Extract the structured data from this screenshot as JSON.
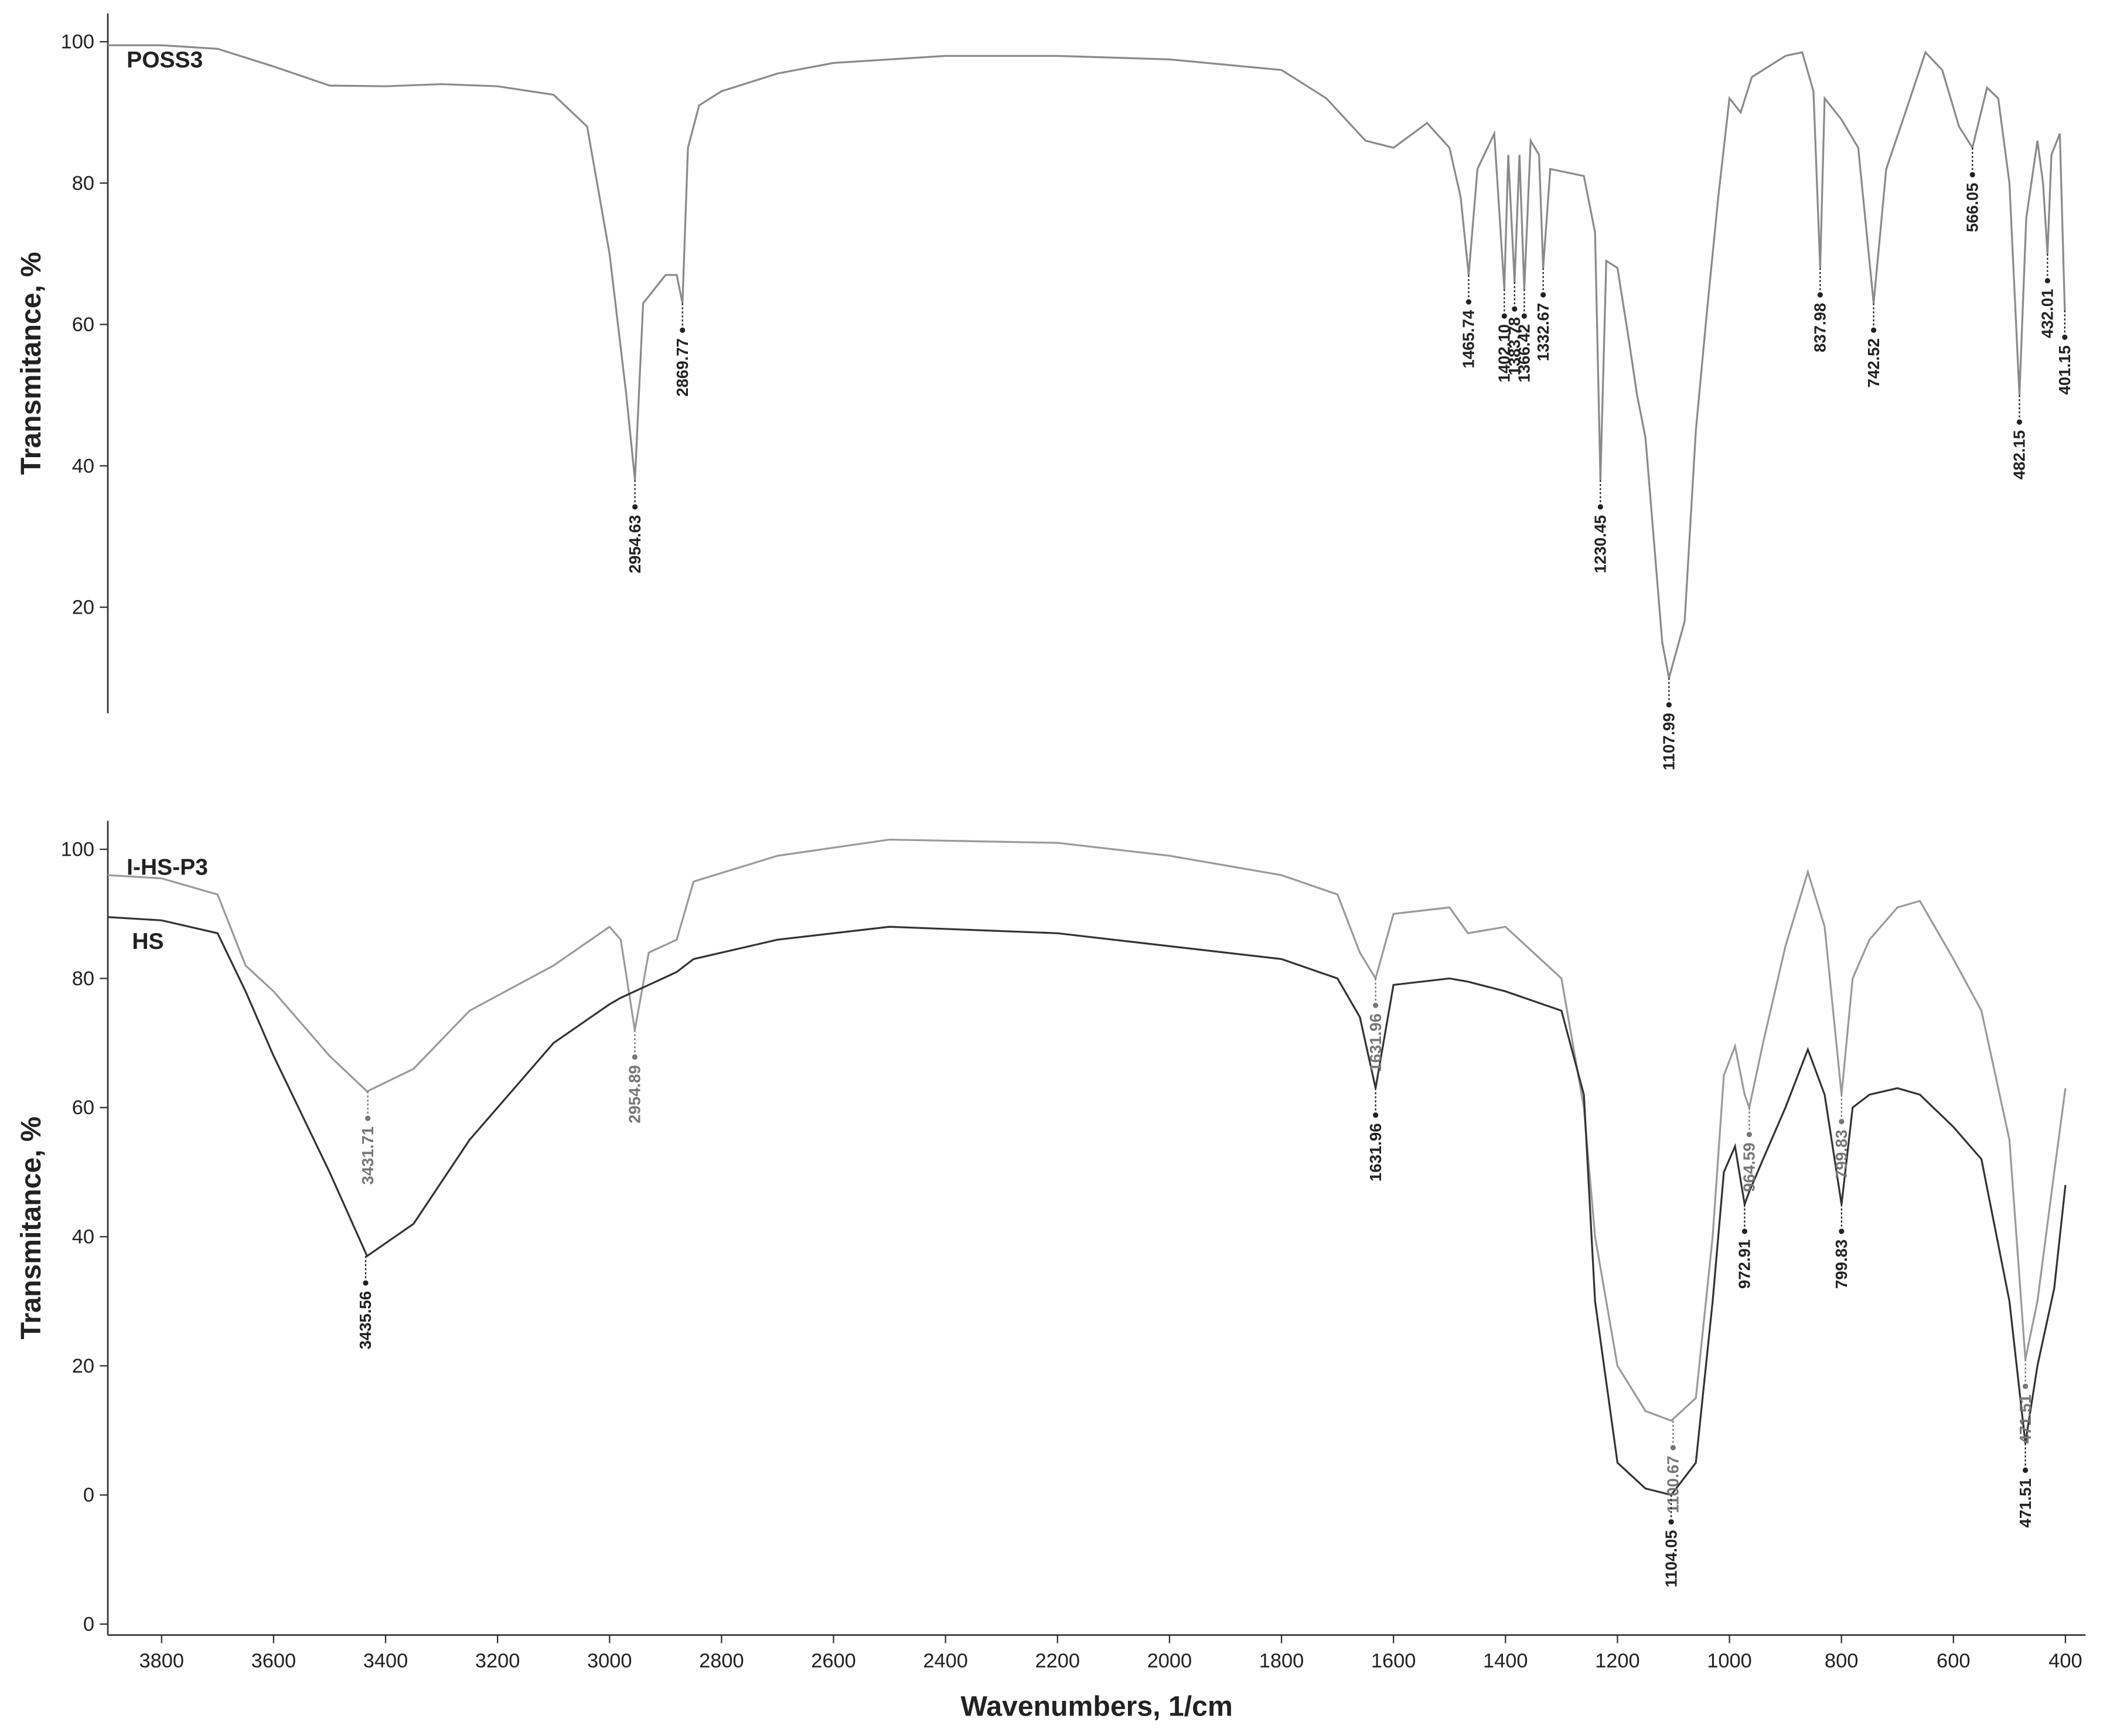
{
  "chart_data": [
    {
      "type": "line",
      "ylabel": "Transmitance, %",
      "xlim": [
        3896,
        364
      ],
      "ylim": [
        5,
        104
      ],
      "yticks": [
        20,
        40,
        60,
        80,
        100
      ],
      "x": [
        3896,
        3800,
        3700,
        3600,
        3500,
        3400,
        3300,
        3200,
        3100,
        3040,
        3000,
        2970,
        2954.63,
        2940,
        2920,
        2900,
        2880,
        2869.77,
        2860,
        2840,
        2800,
        2700,
        2600,
        2400,
        2200,
        2000,
        1800,
        1720,
        1650,
        1600,
        1540,
        1500,
        1480,
        1465.74,
        1450,
        1420,
        1402.1,
        1395,
        1383.78,
        1375,
        1366.42,
        1355,
        1340,
        1332.67,
        1320,
        1260,
        1240,
        1230.45,
        1220,
        1200,
        1180,
        1165,
        1150,
        1120,
        1107.99,
        1080,
        1060,
        1040,
        1020,
        1000,
        980,
        960,
        900,
        870,
        850,
        837.98,
        830,
        800,
        770,
        742.52,
        720,
        690,
        650,
        620,
        590,
        566.05,
        540,
        520,
        500,
        482.15,
        470,
        450,
        440,
        432.01,
        425,
        410,
        401.15
      ],
      "series": [
        {
          "name": "POSS3",
          "color": "#8a8a8a",
          "values": [
            99.5,
            99.5,
            99,
            96.5,
            93.8,
            93.7,
            94,
            93.7,
            92.5,
            88,
            70,
            50,
            38,
            63,
            65,
            67,
            67,
            63,
            85,
            91,
            93,
            95.5,
            97,
            98,
            98,
            97.5,
            96,
            92,
            86,
            85,
            88.5,
            85,
            78,
            67,
            82,
            87,
            65,
            84,
            66,
            84,
            65,
            86,
            84,
            68,
            82,
            81,
            73,
            38,
            69,
            68,
            58,
            50,
            44,
            15,
            10,
            18,
            45,
            62,
            78,
            92,
            90,
            95,
            98,
            98.5,
            93,
            68,
            92,
            89,
            85,
            63,
            82,
            89,
            98.5,
            96,
            88,
            85,
            93.5,
            92,
            80,
            50,
            75,
            86,
            80,
            70,
            84,
            87,
            62
          ]
        }
      ],
      "annotations": [
        {
          "text": "2954.63",
          "x": 2954.63,
          "y": 38,
          "color": "#222"
        },
        {
          "text": "2869.77",
          "x": 2869.77,
          "y": 63,
          "color": "#222"
        },
        {
          "text": "1465.74",
          "x": 1465.74,
          "y": 67,
          "color": "#222"
        },
        {
          "text": "1402.10",
          "x": 1402.1,
          "y": 65,
          "color": "#222"
        },
        {
          "text": "1383.78",
          "x": 1383.78,
          "y": 66,
          "color": "#222"
        },
        {
          "text": "1366.42",
          "x": 1366.42,
          "y": 65,
          "color": "#222"
        },
        {
          "text": "1332.67",
          "x": 1332.67,
          "y": 68,
          "color": "#222"
        },
        {
          "text": "1230.45",
          "x": 1230.45,
          "y": 38,
          "color": "#222"
        },
        {
          "text": "1107.99",
          "x": 1107.99,
          "y": 10,
          "color": "#222"
        },
        {
          "text": "837.98",
          "x": 837.98,
          "y": 68,
          "color": "#222"
        },
        {
          "text": "742.52",
          "x": 742.52,
          "y": 63,
          "color": "#222"
        },
        {
          "text": "566.05",
          "x": 566.05,
          "y": 85,
          "color": "#222"
        },
        {
          "text": "482.15",
          "x": 482.15,
          "y": 50,
          "color": "#222"
        },
        {
          "text": "432.01",
          "x": 432.01,
          "y": 70,
          "color": "#222"
        },
        {
          "text": "401.15",
          "x": 401.15,
          "y": 62,
          "color": "#222"
        }
      ]
    },
    {
      "type": "line",
      "ylabel": "Transmitance, %",
      "xlabel": "Wavenumbers, 1/cm",
      "xlim": [
        3896,
        364
      ],
      "ylim": [
        -21.7,
        104.4
      ],
      "yticks": [
        {
          "value": -20,
          "label": "0"
        },
        0,
        20,
        40,
        60,
        80,
        100
      ],
      "xticks": [
        3800,
        3600,
        3400,
        3200,
        3000,
        2800,
        2600,
        2400,
        2200,
        2000,
        1800,
        1600,
        1400,
        1200,
        1000,
        800,
        600,
        400
      ],
      "x": [
        3896,
        3800,
        3700,
        3650,
        3600,
        3500,
        3433,
        3350,
        3250,
        3100,
        3000,
        2980,
        2954.89,
        2930,
        2880,
        2850,
        2700,
        2500,
        2200,
        2000,
        1800,
        1700,
        1660,
        1631.96,
        1600,
        1500,
        1467,
        1400,
        1300,
        1260,
        1240,
        1200,
        1150,
        1104,
        1060,
        1030,
        1010,
        990,
        972.91,
        964.59,
        940,
        900,
        860,
        830,
        799.83,
        780,
        750,
        700,
        660,
        600,
        550,
        500,
        471.51,
        450,
        420,
        400
      ],
      "series": [
        {
          "name": "I-HS-P3",
          "color": "#9a9a9a",
          "values": [
            96,
            95.5,
            93,
            82,
            78,
            68,
            62.5,
            66,
            75,
            82,
            88,
            86,
            72,
            84,
            86,
            95,
            99,
            101.5,
            101,
            99,
            96,
            93,
            84,
            80,
            90,
            91,
            87,
            88,
            80,
            60,
            40,
            20,
            13,
            11.5,
            15,
            40,
            65,
            69.5,
            62,
            60,
            70,
            85,
            96.5,
            88,
            62,
            80,
            86,
            91,
            92,
            83,
            75,
            55,
            21,
            30,
            50,
            63
          ]
        },
        {
          "name": "HS",
          "color": "#333333",
          "values": [
            89.5,
            89,
            87,
            78,
            68,
            50,
            37,
            42,
            55,
            70,
            76,
            77,
            78,
            79,
            81,
            83,
            86,
            88,
            87,
            85,
            83,
            80,
            74,
            63,
            79,
            80,
            79.5,
            78,
            75,
            62,
            30,
            5,
            1,
            0,
            5,
            30,
            50,
            54,
            45,
            47,
            52,
            60,
            69,
            62,
            45,
            60,
            62,
            63,
            62,
            57,
            52,
            30,
            8,
            20,
            32,
            48
          ]
        }
      ],
      "annotations": [
        {
          "text": "3431.71",
          "x": 3431.71,
          "y": 62.5,
          "color": "#777"
        },
        {
          "text": "3435.56",
          "x": 3435.56,
          "y": 37,
          "color": "#222"
        },
        {
          "text": "2954.89",
          "x": 2954.89,
          "y": 72,
          "color": "#777"
        },
        {
          "text": "1631.96",
          "x": 1631.96,
          "y": 80,
          "color": "#777"
        },
        {
          "text": "1631.96",
          "x": 1631.96,
          "y": 63,
          "color": "#222"
        },
        {
          "text": "1100.67",
          "x": 1100.67,
          "y": 11.5,
          "color": "#777"
        },
        {
          "text": "1104.05",
          "x": 1104.05,
          "y": 0,
          "color": "#222"
        },
        {
          "text": "964.59",
          "x": 964.59,
          "y": 60,
          "color": "#777"
        },
        {
          "text": "972.91",
          "x": 972.91,
          "y": 45,
          "color": "#222"
        },
        {
          "text": "799.83",
          "x": 799.83,
          "y": 62,
          "color": "#777"
        },
        {
          "text": "799.83",
          "x": 799.83,
          "y": 45,
          "color": "#222"
        },
        {
          "text": "471.51",
          "x": 471.51,
          "y": 21,
          "color": "#777"
        },
        {
          "text": "471.51",
          "x": 471.51,
          "y": 8,
          "color": "#222"
        }
      ]
    }
  ]
}
